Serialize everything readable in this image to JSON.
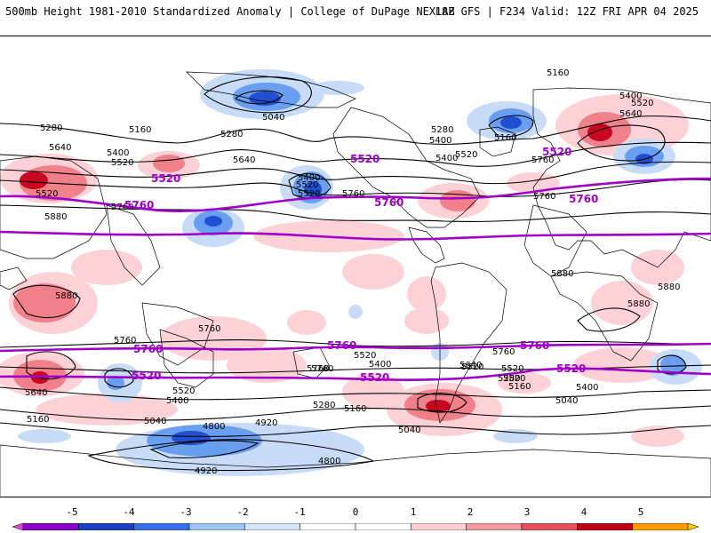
{
  "header": {
    "title": "500mb Height 1981-2010 Standardized Anomaly | College of DuPage NEXLAB",
    "run_info": "18Z GFS | F234 Valid: 12Z FRI APR 04 2025"
  },
  "contour_labels": [
    "5160",
    "5400",
    "5520",
    "5640",
    "5040",
    "5280",
    "5160",
    "5280",
    "5400",
    "5520",
    "5640",
    "5760",
    "5280",
    "5160",
    "5640",
    "5400",
    "5520",
    "5520",
    "5760",
    "5880",
    "5760",
    "5520",
    "5400",
    "5400",
    "5520",
    "5760",
    "5880",
    "5880",
    "5880",
    "5760",
    "5760",
    "5520",
    "5400",
    "5640",
    "5760",
    "5880",
    "5760",
    "5520",
    "5280",
    "5520",
    "5400",
    "5040",
    "5160",
    "4800",
    "4920",
    "4800",
    "4920",
    "5280",
    "5160",
    "5040",
    "5640",
    "5520",
    "5400",
    "5160",
    "5040",
    "5760",
    "5520"
  ],
  "purple_labels": [
    "5520",
    "5760",
    "5520",
    "5760",
    "5520",
    "5520",
    "5760",
    "5760",
    "5520",
    "5520",
    "5760",
    "5520",
    "5760"
  ],
  "colorbar": {
    "ticks": [
      "-5",
      "-4",
      "-3",
      "-2",
      "-1",
      "0",
      "1",
      "2",
      "3",
      "4",
      "5"
    ],
    "colors": [
      "#e040e0",
      "#8a00c8",
      "#1a40c0",
      "#3a6ee8",
      "#9cc4f4",
      "#d4e6fa",
      "#ffffff",
      "#ffffff",
      "#fcd0d4",
      "#f39aa0",
      "#e8505a",
      "#c00010",
      "#ff9a00",
      "#ffcc00"
    ]
  },
  "colors": {
    "neg1": "#c8dcf8",
    "neg2": "#6a9ef0",
    "neg3": "#2050d0",
    "pos1": "#fcd2d6",
    "pos2": "#f0808a",
    "pos3": "#c80820",
    "contour": "#000000",
    "key_contour": "#a000c8"
  }
}
